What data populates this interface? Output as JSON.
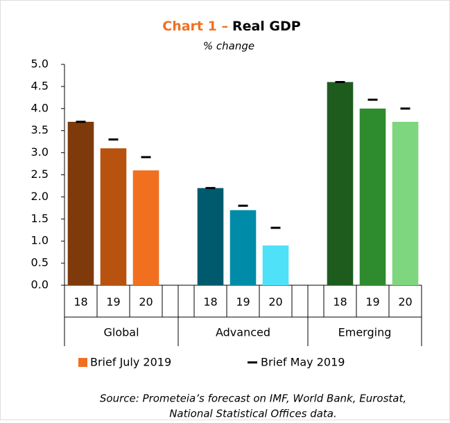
{
  "chart_data": {
    "type": "bar",
    "title_prefix": "Chart 1 –",
    "title": "Real GDP",
    "subtitle": "% change",
    "groups": [
      "Global",
      "Advanced",
      "Emerging"
    ],
    "categories": [
      "18",
      "19",
      "20",
      "18",
      "19",
      "20",
      "18",
      "19",
      "20"
    ],
    "series": [
      {
        "name": "Brief July 2019",
        "color": "#f07020",
        "colors": [
          "#7f3a0b",
          "#b8520f",
          "#f07020",
          "#005a6e",
          "#008ca8",
          "#4ee1f8",
          "#1e5c1e",
          "#2e8b2e",
          "#7ed67e"
        ],
        "values": [
          3.7,
          3.1,
          2.6,
          2.2,
          1.7,
          0.9,
          4.6,
          4.0,
          3.7
        ]
      },
      {
        "name": "Brief May 2019",
        "color": "#000000",
        "marker": "dash",
        "values": [
          3.7,
          3.3,
          2.9,
          2.2,
          1.8,
          1.3,
          4.6,
          4.2,
          4.0
        ]
      }
    ],
    "ylim": [
      0,
      5
    ],
    "yticks": [
      {
        "value": 0,
        "label": "0.0"
      },
      0.5,
      {
        "value": 1,
        "label": "1.0"
      },
      1.5,
      {
        "value": 2,
        "label": "2.0"
      },
      2.5,
      {
        "value": 3,
        "label": "3.0"
      },
      3.5,
      {
        "value": 4,
        "label": "4.0"
      },
      4.5,
      {
        "value": 5,
        "label": "5.0"
      }
    ],
    "source": [
      "Source: Prometeia’s forecast on IMF, World Bank, Eurostat,",
      "National Statistical Offices data."
    ]
  }
}
